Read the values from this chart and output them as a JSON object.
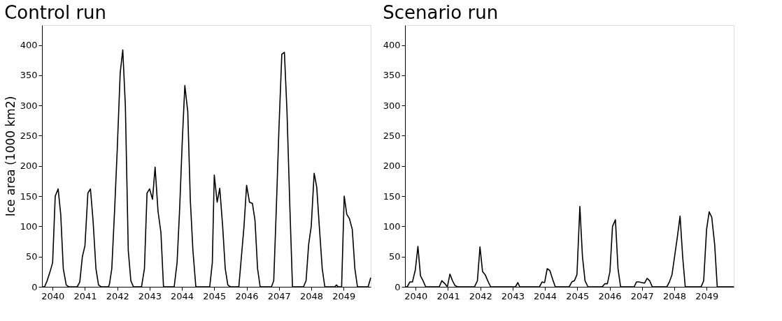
{
  "chart_data": [
    {
      "type": "line",
      "title": "Control run",
      "ylabel": "Ice area (1000 km2)",
      "xlim": [
        2039.67,
        2049.84
      ],
      "ylim": [
        0,
        433
      ],
      "xticks": [
        2040,
        2041,
        2042,
        2043,
        2044,
        2045,
        2046,
        2047,
        2048,
        2049
      ],
      "yticks": [
        0,
        50,
        100,
        150,
        200,
        250,
        300,
        350,
        400
      ],
      "grid": false,
      "marker": "none",
      "line_style": "solid",
      "series": [
        {
          "color": "#000000",
          "x": [
            2039.67,
            2039.75,
            2039.83,
            2039.92,
            2040.0,
            2040.08,
            2040.17,
            2040.25,
            2040.33,
            2040.42,
            2040.5,
            2040.76,
            2040.84,
            2040.92,
            2041.0,
            2041.09,
            2041.17,
            2041.25,
            2041.34,
            2041.42,
            2041.5,
            2041.73,
            2041.76,
            2041.83,
            2041.92,
            2042.0,
            2042.09,
            2042.17,
            2042.25,
            2042.34,
            2042.42,
            2042.5,
            2042.75,
            2042.84,
            2042.92,
            2043.0,
            2043.09,
            2043.17,
            2043.26,
            2043.35,
            2043.43,
            2043.76,
            2043.85,
            2043.93,
            2044.01,
            2044.09,
            2044.18,
            2044.26,
            2044.34,
            2044.43,
            2044.86,
            2044.94,
            2045.0,
            2045.09,
            2045.17,
            2045.26,
            2045.34,
            2045.42,
            2045.5,
            2045.76,
            2045.84,
            2045.92,
            2046.0,
            2046.09,
            2046.18,
            2046.26,
            2046.34,
            2046.42,
            2046.77,
            2046.84,
            2046.92,
            2047.0,
            2047.09,
            2047.17,
            2047.25,
            2047.34,
            2047.42,
            2047.76,
            2047.84,
            2047.92,
            2048.0,
            2048.09,
            2048.17,
            2048.25,
            2048.34,
            2048.42,
            2048.73,
            2048.78,
            2048.83,
            2048.94,
            2049.02,
            2049.1,
            2049.18,
            2049.27,
            2049.35,
            2049.43,
            2049.76,
            2049.84
          ],
          "values": [
            0,
            0,
            10,
            25,
            40,
            150,
            162,
            120,
            30,
            3,
            0,
            0,
            8,
            50,
            68,
            155,
            162,
            110,
            30,
            3,
            0,
            0,
            5,
            30,
            130,
            229,
            354,
            392,
            300,
            60,
            10,
            0,
            0,
            30,
            155,
            162,
            145,
            198,
            125,
            90,
            0,
            0,
            40,
            130,
            240,
            333,
            290,
            143,
            60,
            0,
            0,
            40,
            185,
            140,
            163,
            100,
            30,
            3,
            0,
            0,
            50,
            100,
            168,
            140,
            138,
            110,
            30,
            0,
            0,
            10,
            130,
            260,
            385,
            388,
            290,
            130,
            0,
            0,
            10,
            70,
            100,
            188,
            165,
            100,
            30,
            0,
            0,
            3,
            0,
            0,
            150,
            120,
            113,
            95,
            30,
            0,
            0,
            15
          ]
        }
      ]
    },
    {
      "type": "line",
      "title": "Scenario run",
      "xlim": [
        2039.67,
        2049.84
      ],
      "ylim": [
        0,
        433
      ],
      "xticks": [
        2040,
        2041,
        2042,
        2043,
        2044,
        2045,
        2046,
        2047,
        2048,
        2049
      ],
      "yticks": [
        0,
        50,
        100,
        150,
        200,
        250,
        300,
        350,
        400
      ],
      "grid": false,
      "marker": "none",
      "line_style": "solid",
      "series": [
        {
          "color": "#000000",
          "x": [
            2039.67,
            2039.74,
            2039.82,
            2039.9,
            2039.99,
            2040.07,
            2040.15,
            2040.23,
            2040.31,
            2040.73,
            2040.81,
            2040.89,
            2040.98,
            2041.06,
            2041.14,
            2041.22,
            2041.3,
            2041.82,
            2041.91,
            2041.99,
            2042.07,
            2042.15,
            2042.23,
            2042.32,
            2043.09,
            2043.16,
            2043.22,
            2043.83,
            2043.91,
            2043.99,
            2044.07,
            2044.15,
            2044.24,
            2044.32,
            2044.75,
            2044.83,
            2044.91,
            2044.99,
            2045.08,
            2045.16,
            2045.24,
            2045.33,
            2045.77,
            2045.85,
            2045.93,
            2046.01,
            2046.09,
            2046.18,
            2046.26,
            2046.34,
            2046.76,
            2046.83,
            2046.91,
            2047.0,
            2047.08,
            2047.16,
            2047.24,
            2047.32,
            2047.77,
            2047.85,
            2047.93,
            2048.01,
            2048.09,
            2048.18,
            2048.26,
            2048.34,
            2048.83,
            2048.91,
            2049.0,
            2049.08,
            2049.16,
            2049.25,
            2049.33,
            2049.84
          ],
          "values": [
            0,
            0,
            8,
            8,
            28,
            67,
            18,
            10,
            0,
            0,
            10,
            6,
            0,
            21,
            10,
            2,
            0,
            0,
            10,
            66,
            25,
            20,
            10,
            0,
            0,
            7,
            0,
            0,
            8,
            7,
            30,
            27,
            12,
            0,
            0,
            8,
            10,
            20,
            133,
            50,
            10,
            0,
            0,
            5,
            5,
            25,
            100,
            111,
            30,
            0,
            0,
            8,
            8,
            7,
            6,
            14,
            10,
            0,
            0,
            8,
            20,
            50,
            80,
            117,
            50,
            0,
            0,
            10,
            95,
            124,
            115,
            70,
            0,
            0
          ]
        }
      ]
    }
  ]
}
